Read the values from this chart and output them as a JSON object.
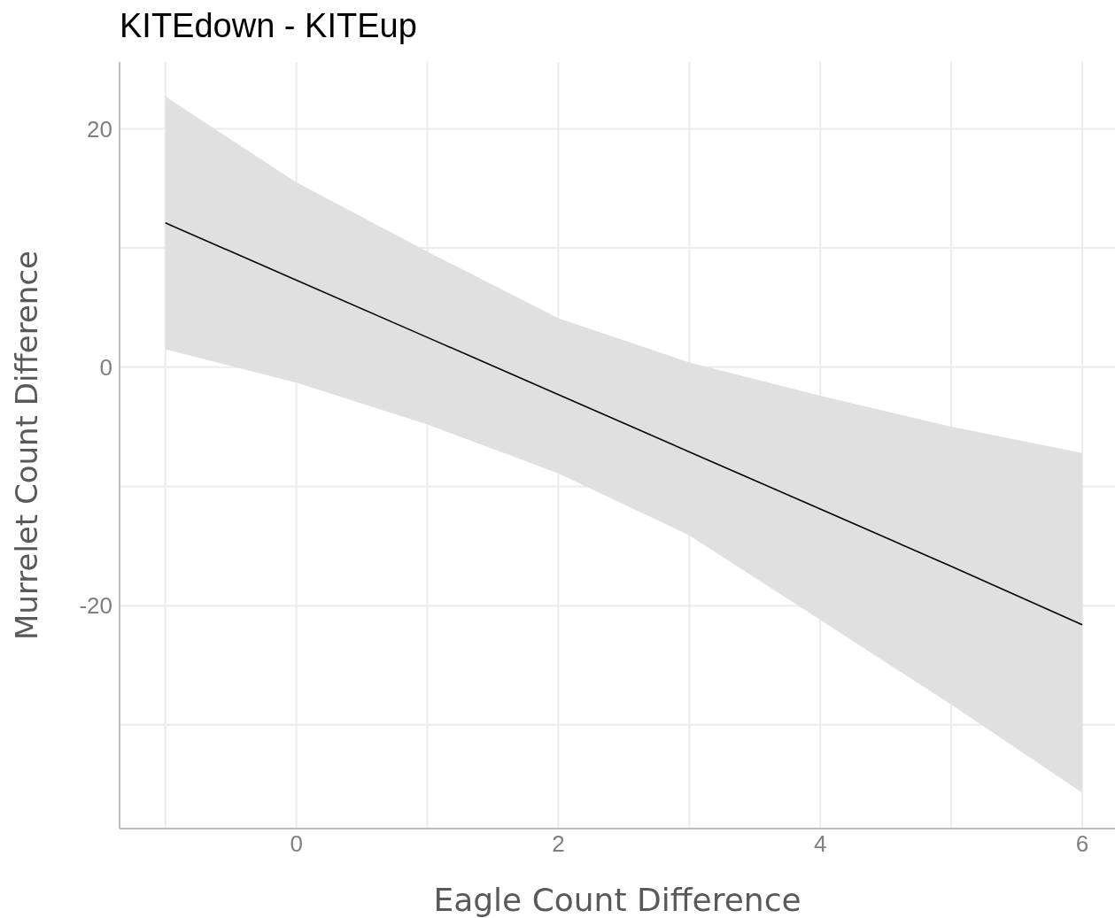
{
  "chart_data": {
    "type": "line",
    "title": "KITEdown - KITEup",
    "xlabel": "Eagle Count Difference",
    "ylabel": "Murrelet Count Difference",
    "series": [
      {
        "color": "#000000",
        "x": [
          -1,
          0,
          1,
          2,
          3,
          4,
          5,
          6
        ],
        "values": [
          12.1,
          7.3,
          2.5,
          -2.3,
          -7.1,
          -11.9,
          -16.7,
          -21.6
        ],
        "lower": [
          1.5,
          -1.3,
          -4.8,
          -8.9,
          -14.1,
          -21.2,
          -28.3,
          -35.7
        ],
        "upper": [
          22.7,
          15.5,
          9.7,
          4.1,
          0.4,
          -2.4,
          -5.0,
          -7.2
        ]
      }
    ],
    "xlim": [
      -1.35,
      6.25
    ],
    "ylim": [
      -38.7,
      25.6
    ],
    "xticks": [
      {
        "value": -1,
        "label": null
      },
      0,
      {
        "value": 1,
        "label": null
      },
      2,
      {
        "value": 3,
        "label": null
      },
      4,
      {
        "value": 5,
        "label": null
      },
      6
    ],
    "yticks": [
      {
        "value": -30,
        "label": null
      },
      -20,
      {
        "value": -10,
        "label": null
      },
      0,
      {
        "value": 10,
        "label": null
      },
      20
    ],
    "grid": true,
    "legend": false,
    "marker": "none",
    "line_style": "solid"
  }
}
